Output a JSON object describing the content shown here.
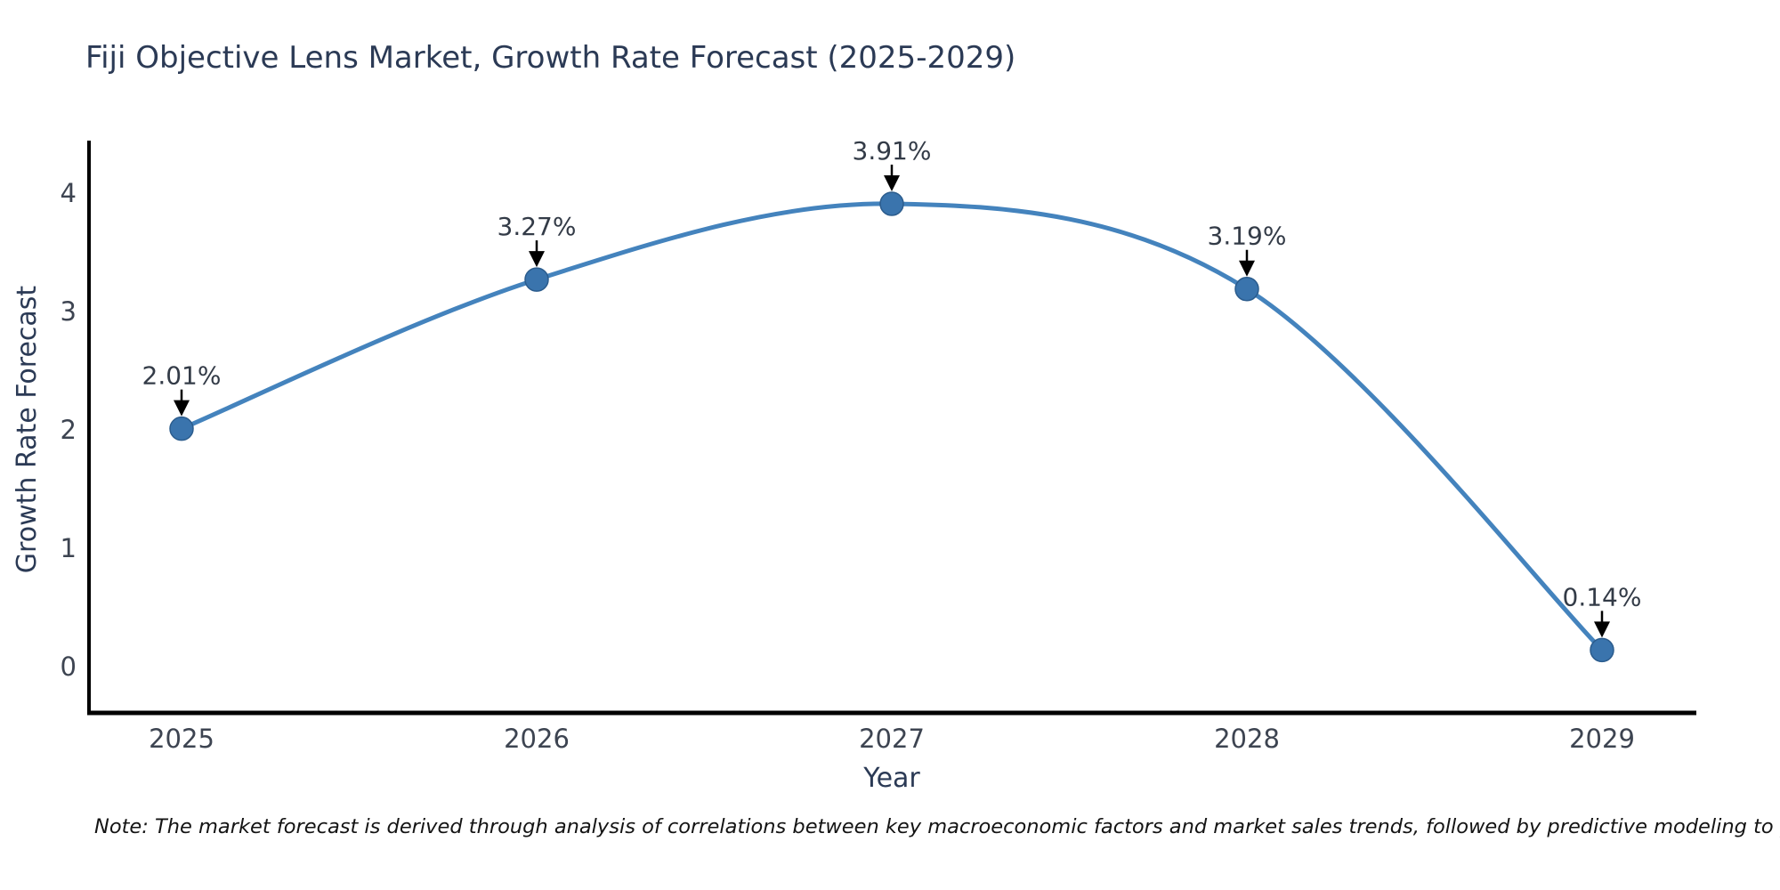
{
  "figure": {
    "title": "Fiji Objective Lens Market, Growth Rate Forecast (2025-2029)",
    "note": "Note: The market forecast is derived through analysis of correlations between key macroeconomic factors and market sales trends, followed by predictive modeling to project future sales."
  },
  "chart_data": {
    "type": "line",
    "title": "Fiji Objective Lens Market, Growth Rate Forecast (2025-2029)",
    "categories": [
      "2025",
      "2026",
      "2027",
      "2028",
      "2029"
    ],
    "values": [
      2.01,
      3.27,
      3.91,
      3.19,
      0.14
    ],
    "point_labels": [
      "2.01%",
      "3.27%",
      "3.91%",
      "3.19%",
      "0.14%"
    ],
    "xlabel": "Year",
    "ylabel": "Growth Rate Forecast",
    "yticks": [
      0,
      1,
      2,
      3,
      4
    ],
    "ylim": [
      -0.4,
      4.45
    ],
    "line_shape": "spline",
    "grid": false,
    "legend": "none",
    "annotation_arrow_direction": "down",
    "colors": {
      "line": "#4483bd",
      "marker": "#3a74ad",
      "marker_edge": "#2b5c8d",
      "arrow": "#000000",
      "axis_line": "#000000",
      "title_text": "#2b3a55",
      "axis_title_text": "#2b3a55",
      "tick_text": "#3d4451",
      "annotation_text": "#333b47",
      "note_text": "#141414",
      "background": "#ffffff"
    }
  }
}
